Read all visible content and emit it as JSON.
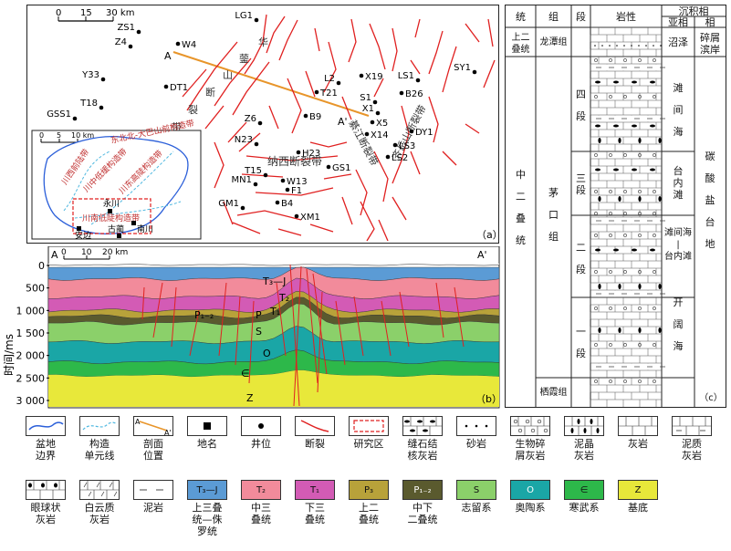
{
  "map": {
    "panel_label": "（a）",
    "scale": {
      "zero": "0",
      "mid": "15",
      "max": "30 km"
    },
    "wells": [
      {
        "name": "ZS1"
      },
      {
        "name": "Z4"
      },
      {
        "name": "W4"
      },
      {
        "name": "Y33"
      },
      {
        "name": "DT1"
      },
      {
        "name": "T18"
      },
      {
        "name": "GSS1"
      },
      {
        "name": "LG1"
      },
      {
        "name": "L2"
      },
      {
        "name": "X19"
      },
      {
        "name": "T21"
      },
      {
        "name": "B9"
      },
      {
        "name": "S1"
      },
      {
        "name": "LS1"
      },
      {
        "name": "B26"
      },
      {
        "name": "SY1"
      },
      {
        "name": "Z6"
      },
      {
        "name": "N23"
      },
      {
        "name": "H23"
      },
      {
        "name": "X1"
      },
      {
        "name": "X5"
      },
      {
        "name": "X14"
      },
      {
        "name": "DY1"
      },
      {
        "name": "LS3"
      },
      {
        "name": "LS2"
      },
      {
        "name": "T15"
      },
      {
        "name": "GS1"
      },
      {
        "name": "MN1"
      },
      {
        "name": "W13"
      },
      {
        "name": "F1"
      },
      {
        "name": "B4"
      },
      {
        "name": "GM1"
      },
      {
        "name": "XM1"
      }
    ],
    "section_a": "A",
    "section_a_prime": "A'",
    "fault_labels": {
      "f1": "华",
      "f2": "蓥",
      "f3": "山",
      "f4": "断",
      "f5": "裂",
      "f6": "带",
      "nanxi": "纳西断裂带",
      "qijiang": "綦江断裂带",
      "qiyue": "齐岳山断裂带"
    },
    "inset": {
      "scale_zero": "0",
      "scale_mid": "5",
      "scale_max": "10 km",
      "unit1": "川西前陆带",
      "unit2": "川中低缓构造带",
      "unit3": "川东高陡构造带",
      "unit4": "川南低陡构造带",
      "belt": "东北北-大巴山前构造带",
      "cities": {
        "yongchuan": "永川",
        "anbian": "安边",
        "gulin": "古蔺",
        "nanchuan": "南川"
      }
    }
  },
  "section": {
    "panel_label": "（b）",
    "a": "A",
    "a_prime": "A'",
    "scale": {
      "zero": "0",
      "mid1": "10",
      "mid2": "20 km"
    },
    "y_axis_label": "时间/ms",
    "y_ticks": [
      "0",
      "500",
      "1 000",
      "1 500",
      "2 000",
      "2 500",
      "3 000"
    ],
    "layer_labels": {
      "t3j": "T₃—J",
      "t2": "T₂",
      "t1": "T₁",
      "p12": "P₁₋₂",
      "p": "P",
      "s": "S",
      "o": "O",
      "e": "∈",
      "z": "Z"
    }
  },
  "strat": {
    "panel_label": "（c）",
    "headers": {
      "tong": "统",
      "zu": "组",
      "duan": "段",
      "yanxing": "岩性",
      "facies": "沉积相",
      "subfacies": "亚相",
      "facies2": "相"
    },
    "shang_er": "上二\n叠统",
    "longtan": "龙潭组",
    "zhaoze": "沼泽",
    "suixie": "碎屑\n滨岸",
    "zhong_er": "中\n\n二\n\n叠\n\n统",
    "maokou": "茅\n\n口\n\n组",
    "qixia": "栖霞组",
    "duan4": "四\n\n段",
    "duan3": "三\n段",
    "duan2": "二\n\n段",
    "duan1": "一\n\n段",
    "tanjian": "滩\n\n间\n\n海",
    "tainei": "台\n内\n滩",
    "tanjian_tainei": "滩间海\n|\n台内滩",
    "kaikuo": "开\n\n阔\n\n海",
    "tansuan": "碳\n\n酸\n\n盐\n\n台\n\n地"
  },
  "legend": {
    "row1": [
      {
        "label": "盆地\n边界",
        "icon": "basin-boundary"
      },
      {
        "label": "构造\n单元线",
        "icon": "tectonic-unit-line"
      },
      {
        "label": "剖面\n位置",
        "icon": "section-line"
      },
      {
        "label": "地名",
        "icon": "place-square"
      },
      {
        "label": "井位",
        "icon": "well-dot"
      },
      {
        "label": "断裂",
        "icon": "fault-line"
      },
      {
        "label": "研究区",
        "icon": "study-area"
      },
      {
        "label": "缝石结\n核灰岩",
        "icon": "nodular-limestone"
      },
      {
        "label": "砂岩",
        "icon": "sandstone"
      },
      {
        "label": "生物碎\n屑灰岩",
        "icon": "bioclastic-limestone"
      },
      {
        "label": "泥晶\n灰岩",
        "icon": "micrite"
      },
      {
        "label": "灰岩",
        "icon": "limestone"
      },
      {
        "label": "泥质\n灰岩",
        "icon": "argillaceous-limestone"
      }
    ],
    "row2": [
      {
        "label": "眼球状\n灰岩",
        "icon": "eyeball-limestone"
      },
      {
        "label": "白云质\n灰岩",
        "icon": "dolomitic-limestone"
      },
      {
        "label": "泥岩",
        "icon": "mudstone"
      },
      {
        "label": "上三叠\n统—侏\n罗统",
        "box": "T₃—J",
        "color": "#5b9bd5"
      },
      {
        "label": "中三\n叠统",
        "box": "T₂",
        "color": "#f28b9b"
      },
      {
        "label": "下三\n叠统",
        "box": "T₁",
        "color": "#d35bb5"
      },
      {
        "label": "上二\n叠统",
        "box": "P₃",
        "color": "#b8a23a"
      },
      {
        "label": "中下\n二叠统",
        "box": "P₁₋₂",
        "color": "#5a5a2e"
      },
      {
        "label": "志留系",
        "box": "S",
        "color": "#8bd06a"
      },
      {
        "label": "奥陶系",
        "box": "O",
        "color": "#1aa6a6"
      },
      {
        "label": "寒武系",
        "box": "∈",
        "color": "#2db84a"
      },
      {
        "label": "基底",
        "box": "Z",
        "color": "#e8e83a"
      }
    ]
  },
  "colors": {
    "t3j": "#5b9bd5",
    "t2": "#f28b9b",
    "t1": "#d35bb5",
    "p3": "#b8a23a",
    "p12": "#5a5a2e",
    "s": "#8bd06a",
    "o": "#1aa6a6",
    "e": "#2db84a",
    "z": "#e8e83a",
    "fault": "#e02020",
    "section_line": "#e8952a"
  }
}
